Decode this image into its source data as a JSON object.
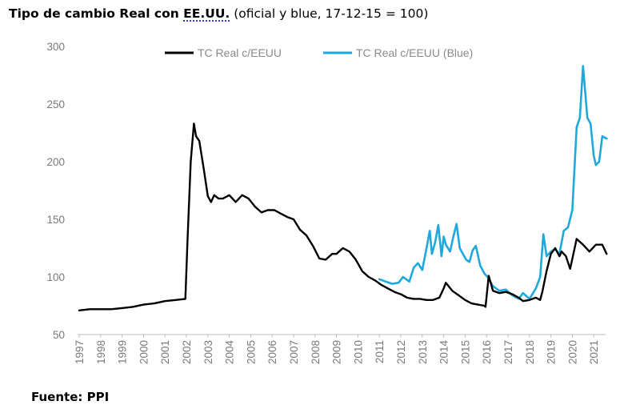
{
  "title": {
    "lead": "Tipo de cambio Real con ",
    "abbr": "EE.UU.",
    "rest": " (oficial y blue, 17-12-15 = 100)"
  },
  "source": "Fuente: PPI",
  "chart_data": {
    "type": "line",
    "ylim": [
      50,
      300
    ],
    "yticks": [
      "50",
      "100",
      "150",
      "200",
      "250",
      "300"
    ],
    "xlim": [
      1997,
      2021.6
    ],
    "xticks": [
      "1997",
      "1998",
      "1999",
      "2000",
      "2001",
      "2002",
      "2003",
      "2004",
      "2005",
      "2006",
      "2007",
      "2008",
      "2009",
      "2010",
      "2011",
      "2012",
      "2013",
      "2014",
      "2015",
      "2016",
      "2017",
      "2018",
      "2019",
      "2020",
      "2021"
    ],
    "grid": false,
    "legend_position": "top",
    "series": [
      {
        "name": "TC Real c/EEUU",
        "color": "#000000",
        "x": [
          1997.0,
          1997.5,
          1998.0,
          1998.5,
          1999.0,
          1999.5,
          2000.0,
          2000.5,
          2001.0,
          2001.5,
          2001.95,
          2002.05,
          2002.2,
          2002.35,
          2002.45,
          2002.6,
          2002.8,
          2003.0,
          2003.15,
          2003.3,
          2003.5,
          2003.7,
          2004.0,
          2004.3,
          2004.6,
          2004.9,
          2005.2,
          2005.5,
          2005.8,
          2006.1,
          2006.4,
          2006.7,
          2007.0,
          2007.3,
          2007.6,
          2007.9,
          2008.2,
          2008.5,
          2008.8,
          2009.0,
          2009.3,
          2009.6,
          2009.9,
          2010.2,
          2010.5,
          2010.8,
          2011.1,
          2011.4,
          2011.7,
          2012.0,
          2012.3,
          2012.6,
          2012.9,
          2013.2,
          2013.5,
          2013.8,
          2014.0,
          2014.1,
          2014.4,
          2014.7,
          2015.0,
          2015.3,
          2015.6,
          2015.9,
          2015.95,
          2016.1,
          2016.3,
          2016.6,
          2016.9,
          2017.2,
          2017.5,
          2017.7,
          2018.0,
          2018.3,
          2018.5,
          2018.6,
          2018.8,
          2019.0,
          2019.2,
          2019.4,
          2019.5,
          2019.7,
          2019.9,
          2020.2,
          2020.5,
          2020.8,
          2021.1,
          2021.4,
          2021.6
        ],
        "y": [
          71,
          72,
          72,
          72,
          73,
          74,
          76,
          77,
          79,
          80,
          81,
          130,
          200,
          233,
          222,
          218,
          195,
          170,
          165,
          171,
          168,
          168,
          171,
          165,
          171,
          168,
          161,
          156,
          158,
          158,
          155,
          152,
          150,
          141,
          136,
          127,
          116,
          115,
          120,
          120,
          125,
          122,
          115,
          105,
          100,
          97,
          93,
          90,
          87,
          85,
          82,
          81,
          81,
          80,
          80,
          82,
          90,
          95,
          88,
          84,
          80,
          77,
          76,
          75,
          74,
          101,
          88,
          86,
          87,
          85,
          82,
          79,
          80,
          82,
          80,
          87,
          105,
          120,
          125,
          118,
          122,
          118,
          107,
          133,
          128,
          122,
          128,
          128,
          120
        ],
        "ylabel": ""
      },
      {
        "name": "TC Real c/EEUU (Blue)",
        "color": "#1fa8dc",
        "x": [
          2011.0,
          2011.3,
          2011.6,
          2011.9,
          2012.1,
          2012.4,
          2012.6,
          2012.8,
          2013.0,
          2013.2,
          2013.35,
          2013.45,
          2013.6,
          2013.75,
          2013.9,
          2014.0,
          2014.1,
          2014.3,
          2014.45,
          2014.6,
          2014.75,
          2014.9,
          2015.05,
          2015.2,
          2015.35,
          2015.5,
          2015.7,
          2015.9,
          2016.05,
          2016.3,
          2016.6,
          2016.9,
          2017.2,
          2017.5,
          2017.7,
          2018.0,
          2018.3,
          2018.5,
          2018.65,
          2018.8,
          2019.0,
          2019.2,
          2019.4,
          2019.6,
          2019.8,
          2020.0,
          2020.2,
          2020.35,
          2020.5,
          2020.7,
          2020.85,
          2021.0,
          2021.1,
          2021.25,
          2021.4,
          2021.6
        ],
        "y": [
          98,
          96,
          94,
          95,
          100,
          96,
          108,
          112,
          106,
          125,
          140,
          120,
          130,
          145,
          118,
          135,
          128,
          122,
          135,
          146,
          125,
          120,
          115,
          113,
          123,
          127,
          110,
          103,
          100,
          92,
          88,
          89,
          84,
          81,
          86,
          81,
          90,
          100,
          137,
          118,
          122,
          124,
          120,
          140,
          143,
          158,
          230,
          238,
          283,
          238,
          233,
          205,
          197,
          200,
          222,
          220
        ],
        "ylabel": ""
      }
    ]
  }
}
